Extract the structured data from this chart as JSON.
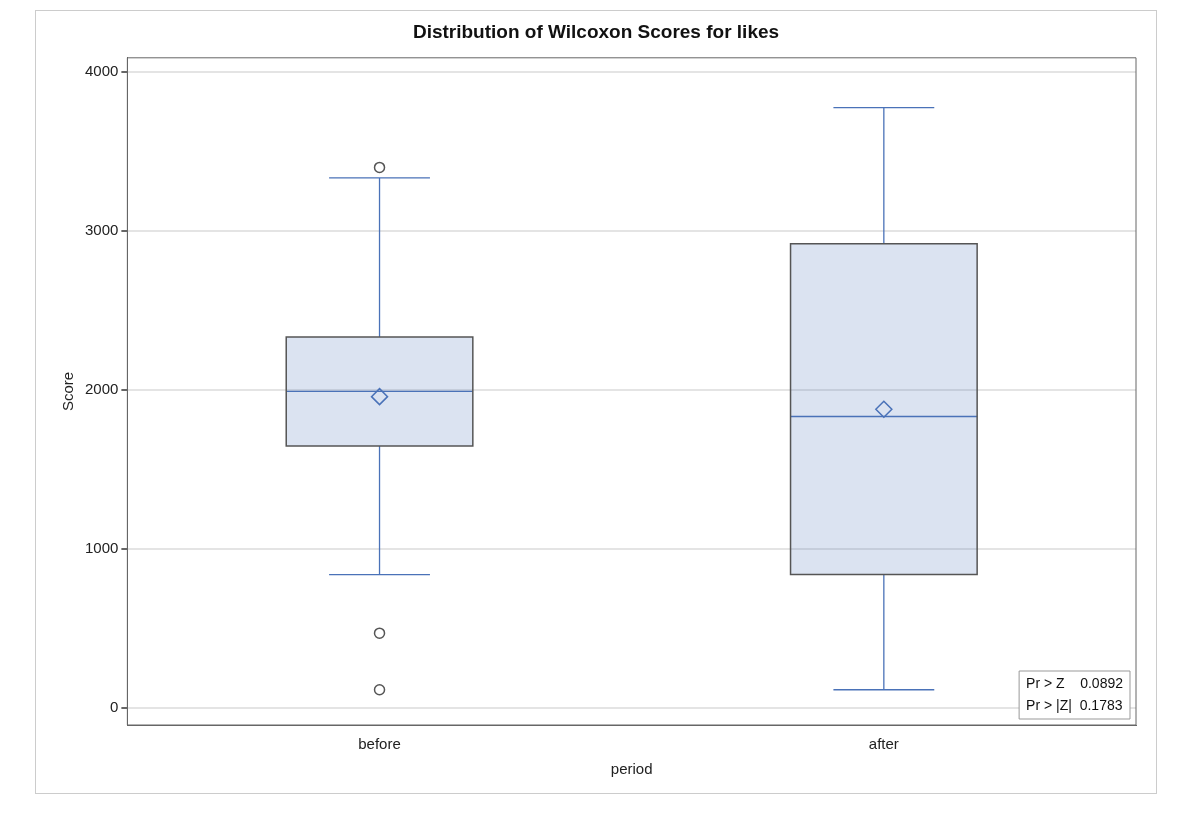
{
  "chart_data": {
    "type": "box",
    "title": "Distribution of Wilcoxon Scores for likes",
    "xlabel": "period",
    "ylabel": "Score",
    "categories": [
      "before",
      "after"
    ],
    "series": [
      {
        "color": "#4a72b8",
        "boxes": [
          {
            "low": 837,
            "q1": 1647,
            "median": 1990,
            "q3": 2333,
            "high": 3334,
            "mean": 1957,
            "outliers": [
              3400,
              468,
              112
            ]
          },
          {
            "low": 112,
            "q1": 837,
            "median": 1832,
            "q3": 2919,
            "high": 3776,
            "mean": 1878
          }
        ]
      }
    ],
    "ylim": [
      -110,
      4090
    ],
    "yticks": [
      0,
      1000,
      2000,
      3000,
      4000
    ],
    "grid": "y",
    "annotations": [
      "Pr > Z    0.0892",
      "Pr > |Z|  0.1783"
    ]
  }
}
